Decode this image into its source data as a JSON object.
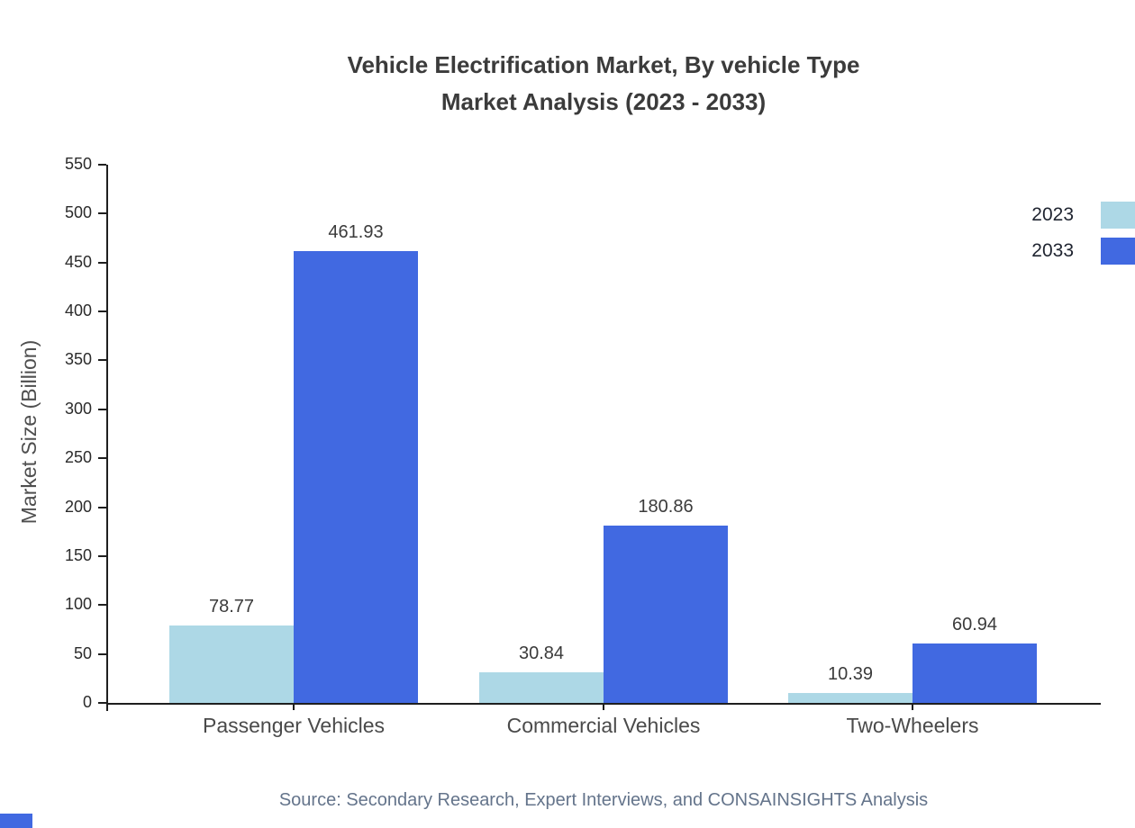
{
  "title_line1": "Vehicle Electrification Market, By vehicle Type",
  "title_line2": "Market Analysis (2023 - 2033)",
  "source": "Source: Secondary Research, Expert Interviews, and CONSAINSIGHTS Analysis",
  "ylabel": "Market Size (Billion)",
  "accent_color": "#4169e1",
  "legend": [
    {
      "label": "2023",
      "color": "#add8e6"
    },
    {
      "label": "2033",
      "color": "#4169e1"
    }
  ],
  "chart_data": {
    "type": "bar",
    "title": "Vehicle Electrification Market, By vehicle Type — Market Analysis (2023 - 2033)",
    "categories": [
      "Passenger Vehicles",
      "Commercial Vehicles",
      "Two-Wheelers"
    ],
    "series": [
      {
        "name": "2023",
        "color": "#add8e6",
        "values": [
          78.77,
          30.84,
          10.39
        ]
      },
      {
        "name": "2033",
        "color": "#4169e1",
        "values": [
          461.93,
          180.86,
          60.94
        ]
      }
    ],
    "xlabel": "",
    "ylabel": "Market Size (Billion)",
    "ylim": [
      0,
      550
    ],
    "ytick_step": 50,
    "grid": false,
    "legend_position": "top-right"
  }
}
